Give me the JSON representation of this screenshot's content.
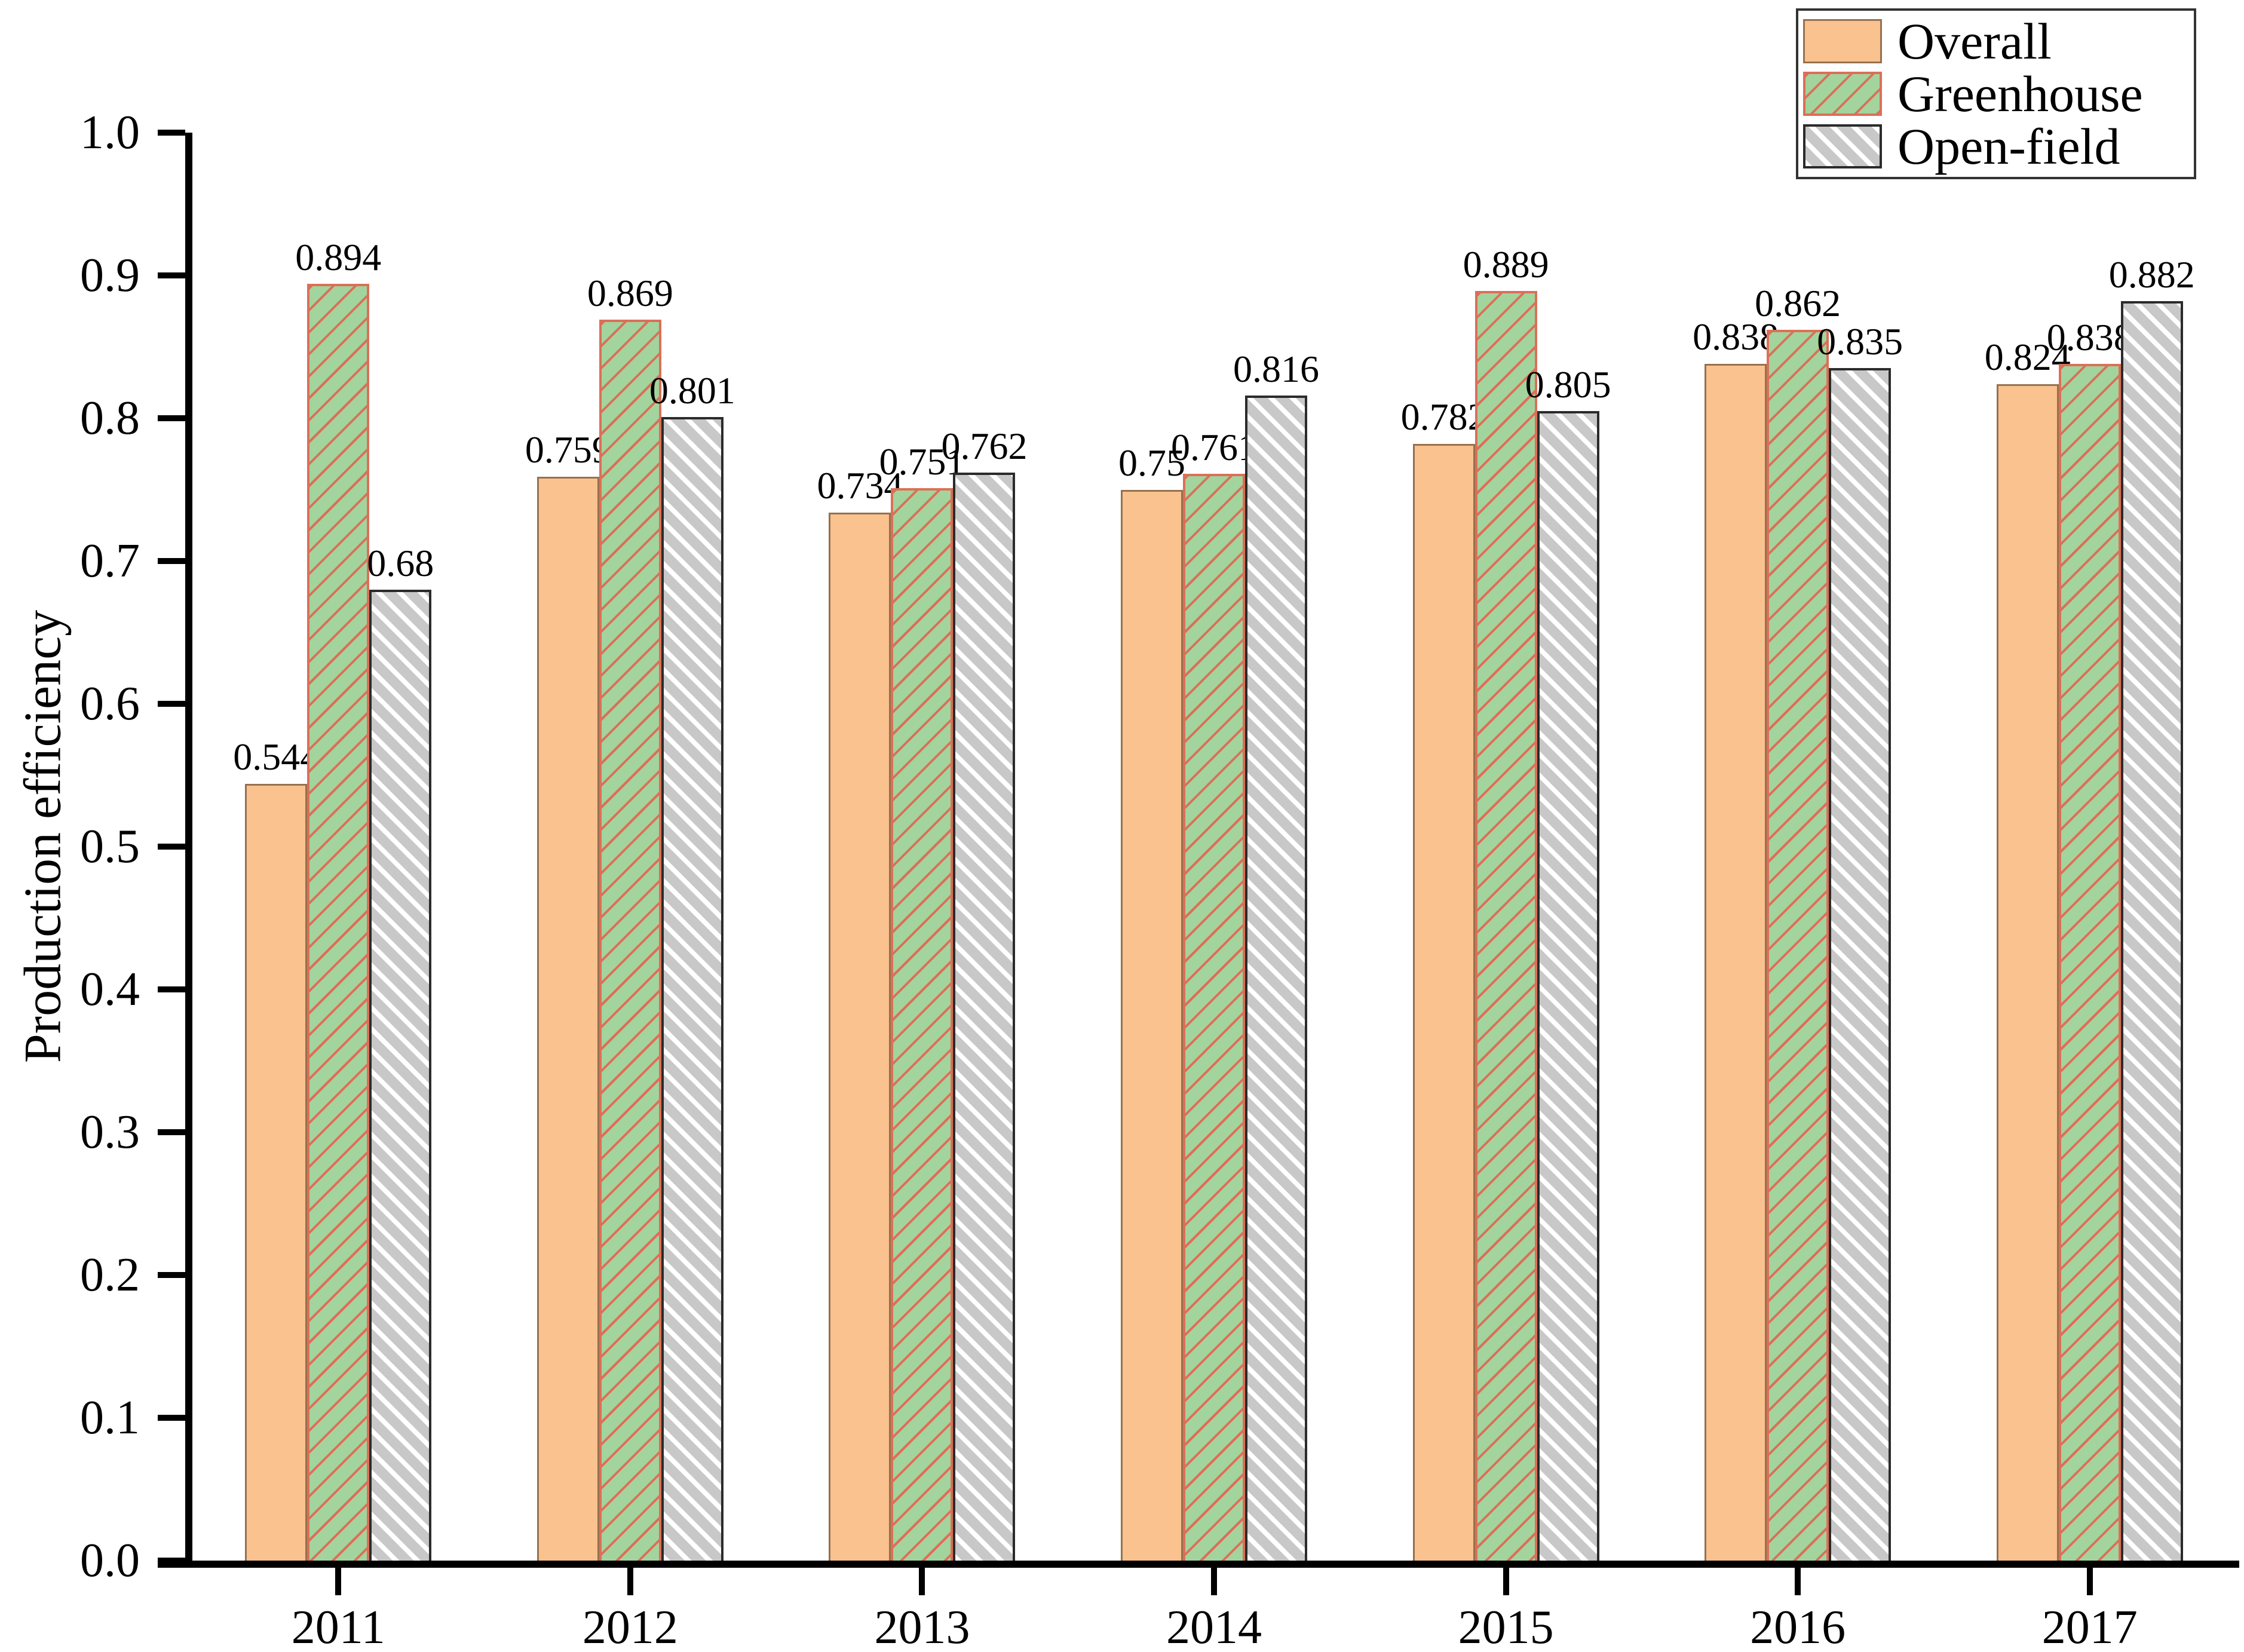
{
  "chart_data": {
    "type": "bar",
    "title": "",
    "xlabel": "",
    "ylabel": "Production efficiency",
    "ylim": [
      0.0,
      1.0
    ],
    "ytick_labels": [
      "0.0",
      "0.1",
      "0.2",
      "0.3",
      "0.4",
      "0.5",
      "0.6",
      "0.7",
      "0.8",
      "0.9",
      "1.0"
    ],
    "categories": [
      "2011",
      "2012",
      "2013",
      "2014",
      "2015",
      "2016",
      "2017"
    ],
    "series": [
      {
        "name": "Overall",
        "values": [
          0.544,
          0.759,
          0.734,
          0.75,
          0.782,
          0.838,
          0.824
        ],
        "labels": [
          "0.544",
          "0.759",
          "0.734",
          "0.75",
          "0.782",
          "0.838",
          "0.824"
        ],
        "fill": "#F9C28E",
        "edge": "#96714F",
        "hatch": "none"
      },
      {
        "name": "Greenhouse",
        "values": [
          0.894,
          0.869,
          0.751,
          0.761,
          0.889,
          0.862,
          0.838
        ],
        "labels": [
          "0.894",
          "0.869",
          "0.751",
          "0.761",
          "0.889",
          "0.862",
          "0.838"
        ],
        "fill": "#A3D49D",
        "edge": "#DC6F58",
        "hatch": "diagonal-up",
        "hatch_color": "#DC6F58"
      },
      {
        "name": "Open-field",
        "values": [
          0.68,
          0.801,
          0.762,
          0.816,
          0.805,
          0.835,
          0.882
        ],
        "labels": [
          "0.68",
          "0.801",
          "0.762",
          "0.816",
          "0.805",
          "0.835",
          "0.882"
        ],
        "fill": "#C8C8C8",
        "edge": "#2B2B2B",
        "hatch": "diagonal-down",
        "hatch_color": "#FFFFFF"
      }
    ],
    "legend": {
      "position": "top-right",
      "entries": [
        "Overall",
        "Greenhouse",
        "Open-field"
      ]
    },
    "grid": false,
    "axis_color": "#000000",
    "background": "#FFFFFF"
  }
}
